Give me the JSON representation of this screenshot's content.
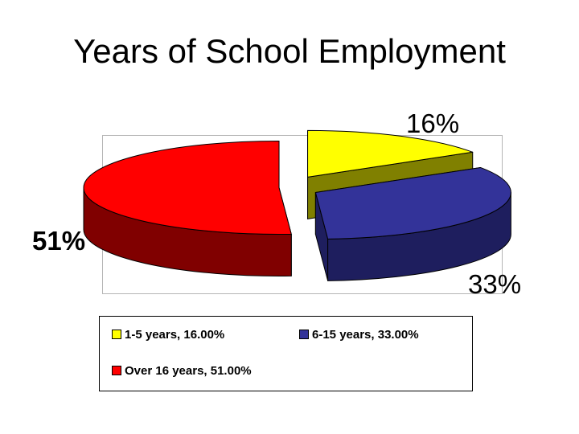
{
  "title": "Years of School Employment",
  "chart_data": {
    "type": "pie",
    "style": "3d-exploded",
    "title": "Years of School Employment",
    "slices": [
      {
        "name": "1-5 years",
        "value": 16,
        "label": "16%",
        "legend": "1-5 years, 16.00%",
        "color": "#FFFF00",
        "side_color": "#808000"
      },
      {
        "name": "6-15 years",
        "value": 33,
        "label": "33%",
        "legend": "6-15 years, 33.00%",
        "color": "#333399",
        "side_color": "#1E1E5E"
      },
      {
        "name": "Over 16 years",
        "value": 51,
        "label": "51%",
        "legend": "Over 16 years, 51.00%",
        "color": "#FF0000",
        "side_color": "#800000"
      }
    ],
    "legend_position": "bottom"
  }
}
